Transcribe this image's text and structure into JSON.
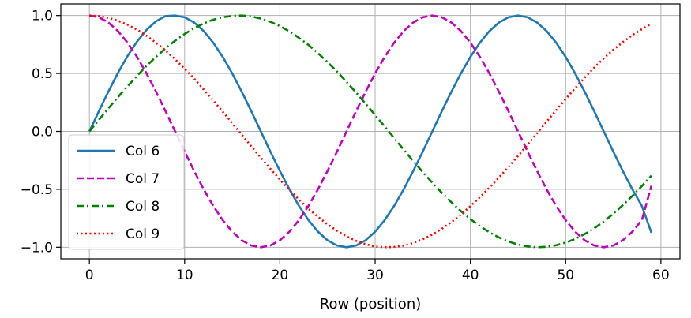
{
  "chart_data": {
    "type": "line",
    "title": "",
    "xlabel": "Row (position)",
    "ylabel": "",
    "xlim": [
      -3,
      62
    ],
    "ylim": [
      -1.1,
      1.1
    ],
    "xticks": [
      0,
      10,
      20,
      30,
      40,
      50,
      60
    ],
    "xtick_labels": [
      "0",
      "10",
      "20",
      "30",
      "40",
      "50",
      "60"
    ],
    "yticks": [
      -1.0,
      -0.5,
      0.0,
      0.5,
      1.0
    ],
    "ytick_labels": [
      "−1.0",
      "−0.5",
      "0.0",
      "0.5",
      "1.0"
    ],
    "grid": true,
    "legend_position": "left",
    "x": [
      0,
      1,
      2,
      3,
      4,
      5,
      6,
      7,
      8,
      9,
      10,
      11,
      12,
      13,
      14,
      15,
      16,
      17,
      18,
      19,
      20,
      21,
      22,
      23,
      24,
      25,
      26,
      27,
      28,
      29,
      30,
      31,
      32,
      33,
      34,
      35,
      36,
      37,
      38,
      39,
      40,
      41,
      42,
      43,
      44,
      45,
      46,
      47,
      48,
      49,
      50,
      51,
      52,
      53,
      54,
      55,
      56,
      57,
      58,
      59
    ],
    "series": [
      {
        "name": "Col 6",
        "color": "#1f77b4",
        "dash": "solid",
        "values": [
          0.0,
          0.175,
          0.345,
          0.505,
          0.65,
          0.775,
          0.876,
          0.951,
          0.996,
          1.0,
          0.985,
          0.94,
          0.866,
          0.766,
          0.643,
          0.5,
          0.342,
          0.174,
          0.0,
          -0.174,
          -0.342,
          -0.5,
          -0.643,
          -0.766,
          -0.866,
          -0.94,
          -0.985,
          -1.0,
          -0.985,
          -0.94,
          -0.866,
          -0.766,
          -0.643,
          -0.5,
          -0.342,
          -0.174,
          0.0,
          0.174,
          0.342,
          0.5,
          0.643,
          0.766,
          0.866,
          0.94,
          0.985,
          1.0,
          0.985,
          0.94,
          0.866,
          0.766,
          0.643,
          0.5,
          0.342,
          0.174,
          0.0,
          -0.174,
          -0.342,
          -0.5,
          -0.643,
          -0.875
        ]
      },
      {
        "name": "Col 7",
        "color": "#bf00bf",
        "dash": "dashed",
        "values": [
          1.0,
          0.985,
          0.94,
          0.866,
          0.766,
          0.643,
          0.5,
          0.342,
          0.174,
          0.0,
          -0.174,
          -0.342,
          -0.5,
          -0.643,
          -0.766,
          -0.866,
          -0.94,
          -0.985,
          -1.0,
          -0.985,
          -0.94,
          -0.866,
          -0.766,
          -0.643,
          -0.5,
          -0.342,
          -0.174,
          0.0,
          0.174,
          0.342,
          0.5,
          0.643,
          0.766,
          0.866,
          0.94,
          0.985,
          1.0,
          0.985,
          0.94,
          0.866,
          0.766,
          0.643,
          0.5,
          0.342,
          0.174,
          0.0,
          -0.174,
          -0.342,
          -0.5,
          -0.643,
          -0.766,
          -0.866,
          -0.94,
          -0.985,
          -1.0,
          -0.985,
          -0.94,
          -0.866,
          -0.766,
          -0.47
        ]
      },
      {
        "name": "Col 8",
        "color": "#008000",
        "dash": "dashdot",
        "values": [
          0.0,
          0.1,
          0.199,
          0.296,
          0.389,
          0.479,
          0.565,
          0.644,
          0.717,
          0.783,
          0.841,
          0.891,
          0.932,
          0.964,
          0.985,
          0.997,
          1.0,
          0.992,
          0.974,
          0.946,
          0.909,
          0.863,
          0.808,
          0.746,
          0.675,
          0.598,
          0.516,
          0.427,
          0.335,
          0.239,
          0.141,
          0.042,
          -0.058,
          -0.158,
          -0.256,
          -0.351,
          -0.443,
          -0.53,
          -0.612,
          -0.688,
          -0.757,
          -0.818,
          -0.871,
          -0.916,
          -0.951,
          -0.977,
          -0.993,
          -1.0,
          -0.996,
          -0.983,
          -0.96,
          -0.928,
          -0.886,
          -0.836,
          -0.778,
          -0.711,
          -0.637,
          -0.557,
          -0.472,
          -0.382
        ]
      },
      {
        "name": "Col 9",
        "color": "#ff0000",
        "dash": "dotted",
        "values": [
          1.0,
          0.995,
          0.98,
          0.955,
          0.921,
          0.878,
          0.825,
          0.765,
          0.697,
          0.622,
          0.54,
          0.454,
          0.362,
          0.267,
          0.17,
          0.071,
          -0.029,
          -0.129,
          -0.227,
          -0.323,
          -0.416,
          -0.505,
          -0.589,
          -0.667,
          -0.738,
          -0.802,
          -0.858,
          -0.906,
          -0.945,
          -0.974,
          -0.994,
          -1.0,
          -0.997,
          -0.986,
          -0.963,
          -0.931,
          -0.891,
          -0.841,
          -0.783,
          -0.718,
          -0.646,
          -0.568,
          -0.485,
          -0.398,
          -0.307,
          -0.212,
          -0.115,
          -0.016,
          0.083,
          0.182,
          0.279,
          0.374,
          0.464,
          0.55,
          0.63,
          0.704,
          0.771,
          0.831,
          0.882,
          0.93
        ]
      }
    ]
  }
}
